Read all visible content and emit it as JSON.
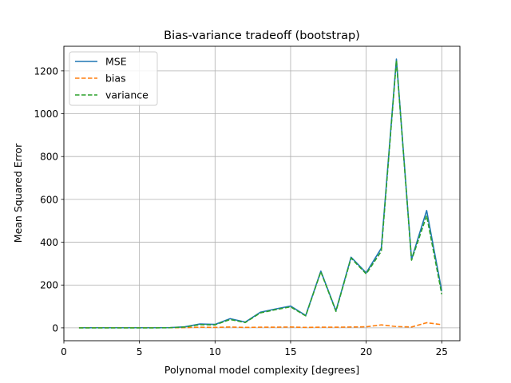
{
  "chart_data": {
    "type": "line",
    "title": "Bias-variance tradeoff (bootstrap)",
    "xlabel": "Polynomal model complexity [degrees]",
    "ylabel": "Mean Squared Error",
    "xlim": [
      0,
      26.2
    ],
    "ylim": [
      -60,
      1315
    ],
    "xticks": [
      0,
      5,
      10,
      15,
      20,
      25
    ],
    "yticks": [
      0,
      200,
      400,
      600,
      800,
      1000,
      1200
    ],
    "grid": true,
    "legend_position": "top-left",
    "x": [
      1,
      2,
      3,
      4,
      5,
      6,
      7,
      8,
      9,
      10,
      11,
      12,
      13,
      14,
      15,
      16,
      17,
      18,
      19,
      20,
      21,
      22,
      23,
      24,
      25
    ],
    "series": [
      {
        "name": "MSE",
        "color": "#1f77b4",
        "style": "solid",
        "values": [
          0.5,
          0.5,
          0.5,
          0.5,
          0.5,
          0.5,
          1,
          5,
          18,
          16,
          43,
          27,
          73,
          88,
          102,
          58,
          265,
          80,
          330,
          257,
          372,
          1255,
          320,
          548,
          172
        ]
      },
      {
        "name": "bias",
        "color": "#ff7f0e",
        "style": "dashed",
        "values": [
          0.5,
          0.5,
          0.5,
          0.5,
          0.5,
          0.5,
          0.5,
          1,
          3,
          2,
          4,
          2,
          3,
          3,
          4,
          2,
          3,
          3,
          4,
          5,
          14,
          6,
          4,
          24,
          15
        ]
      },
      {
        "name": "variance",
        "color": "#2ca02c",
        "style": "dashed",
        "values": [
          0,
          0,
          0,
          0,
          0,
          0,
          0.5,
          4,
          15,
          14,
          39,
          25,
          70,
          85,
          98,
          56,
          262,
          77,
          326,
          252,
          358,
          1249,
          316,
          524,
          157
        ]
      }
    ]
  }
}
